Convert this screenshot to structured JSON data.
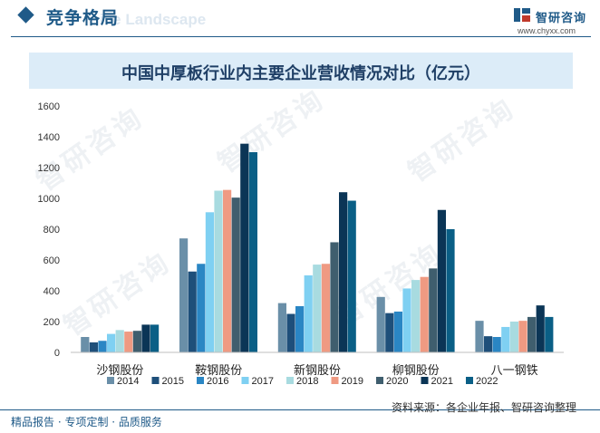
{
  "header": {
    "section_title": "竞争格局",
    "section_title_ghost": "ive Landscape",
    "brand_name": "智研咨询",
    "brand_url": "www.chyxx.com"
  },
  "watermark_text": "智研咨询",
  "footer": {
    "left_text": "精品报告 · 专项定制 · 品质服务",
    "source_text": "资料来源：各企业年报、智研咨询整理"
  },
  "chart_data": {
    "type": "bar",
    "title": "中国中厚板行业内主要企业营收情况对比（亿元）",
    "xlabel": "",
    "ylabel": "",
    "ylim": [
      0,
      1600
    ],
    "yticks": [
      0,
      200,
      400,
      600,
      800,
      1000,
      1200,
      1400,
      1600
    ],
    "grid": false,
    "legend_position": "bottom",
    "categories": [
      "沙钢股份",
      "鞍钢股份",
      "新钢股份",
      "柳钢股份",
      "八一钢铁"
    ],
    "series": [
      {
        "name": "2014",
        "color": "#6a8fa8",
        "values": [
          100,
          740,
          320,
          360,
          205
        ]
      },
      {
        "name": "2015",
        "color": "#1e4f7a",
        "values": [
          65,
          525,
          250,
          255,
          105
        ]
      },
      {
        "name": "2016",
        "color": "#2a86c4",
        "values": [
          75,
          575,
          300,
          265,
          100
        ]
      },
      {
        "name": "2017",
        "color": "#7fd0f2",
        "values": [
          120,
          910,
          500,
          415,
          165
        ]
      },
      {
        "name": "2018",
        "color": "#a8dbe0",
        "values": [
          145,
          1050,
          570,
          470,
          200
        ]
      },
      {
        "name": "2019",
        "color": "#ef9a82",
        "values": [
          135,
          1055,
          575,
          490,
          205
        ]
      },
      {
        "name": "2020",
        "color": "#3f5e6e",
        "values": [
          140,
          1005,
          715,
          545,
          230
        ]
      },
      {
        "name": "2021",
        "color": "#0b3556",
        "values": [
          180,
          1355,
          1040,
          925,
          305
        ]
      },
      {
        "name": "2022",
        "color": "#0a5f86",
        "values": [
          180,
          1300,
          985,
          800,
          230
        ]
      }
    ]
  }
}
